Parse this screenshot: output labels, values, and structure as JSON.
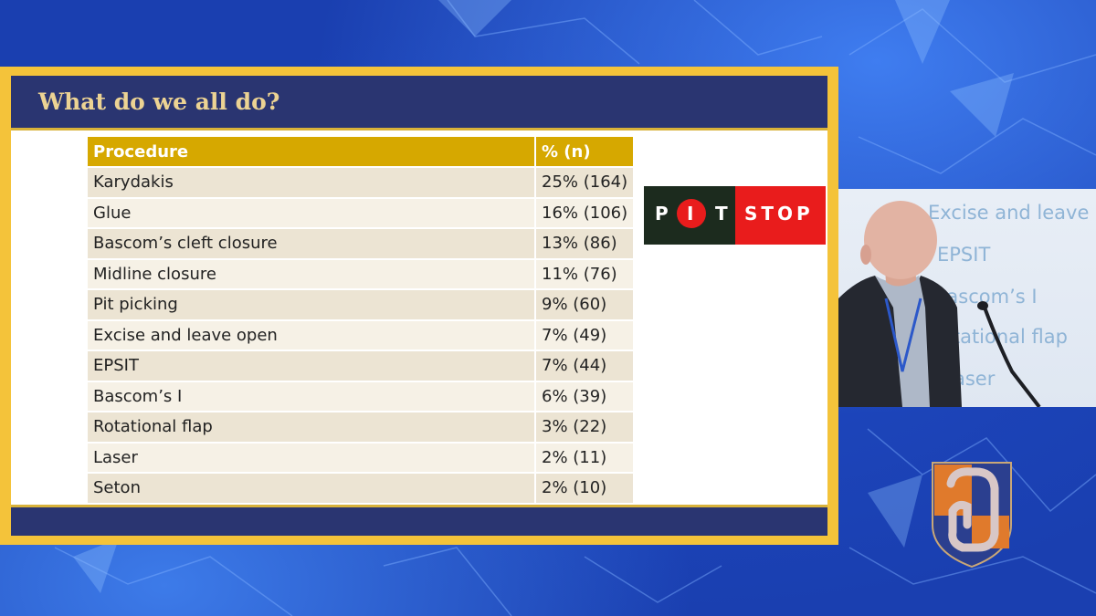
{
  "slide": {
    "title": "What do we all do?",
    "table": {
      "headers": [
        "Procedure",
        "% (n)"
      ],
      "rows": [
        [
          "Karydakis",
          "25% (164)"
        ],
        [
          "Glue",
          "16% (106)"
        ],
        [
          "Bascom’s cleft closure",
          "13% (86)"
        ],
        [
          "Midline closure",
          "11% (76)"
        ],
        [
          "Pit picking",
          "9% (60)"
        ],
        [
          "Excise and leave open",
          "7% (49)"
        ],
        [
          "EPSIT",
          "7% (44)"
        ],
        [
          "Bascom’s I",
          "6% (39)"
        ],
        [
          "Rotational flap",
          "3% (22)"
        ],
        [
          "Laser",
          "2% (11)"
        ],
        [
          "Seton",
          "2% (10)"
        ]
      ]
    },
    "logo": {
      "letters": [
        "P",
        "I",
        "T"
      ],
      "stop": "STOP"
    }
  },
  "video": {
    "visible_text": [
      "Excise and leave o",
      "EPSIT",
      "Bascom’s I",
      "otational flap",
      "aser"
    ]
  },
  "colors": {
    "background": "#1f4fd0",
    "frame": "#f4c33a",
    "header": "#2a3571",
    "title": "#ecd393",
    "table_header": "#d6a800",
    "row_odd": "#ece4d3",
    "row_even": "#f6f1e6",
    "logo_dark": "#1c2b1e",
    "logo_red": "#e91c1c"
  },
  "icons": {
    "crest": "colorectal-society-crest-icon",
    "speaker": "speaker-video-feed"
  }
}
